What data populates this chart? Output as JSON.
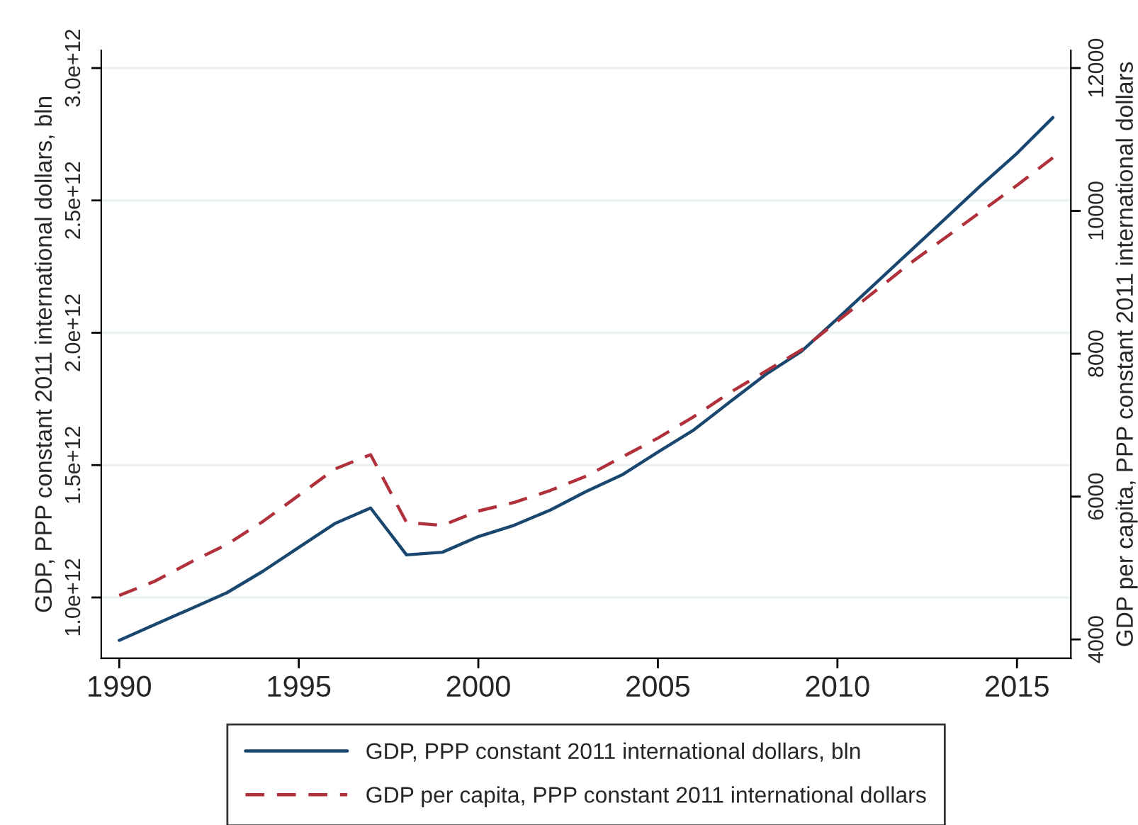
{
  "chart_data": {
    "type": "line",
    "ylabel": "GDP, PPP constant 2011 international dollars, bln",
    "y2label": "GDP per capita, PPP constant 2011 international dollars",
    "x": [
      1990,
      1991,
      1992,
      1993,
      1994,
      1995,
      1996,
      1997,
      1998,
      1999,
      2000,
      2001,
      2002,
      2003,
      2004,
      2005,
      2006,
      2007,
      2008,
      2009,
      2010,
      2011,
      2012,
      2013,
      2014,
      2015,
      2016
    ],
    "series": [
      {
        "name": "GDP, PPP constant 2011 international dollars, bln",
        "color": "#1a476f",
        "line_style": "solid",
        "values": [
          838000000000.0,
          898000000000.0,
          958000000000.0,
          1018000000000.0,
          1099000000000.0,
          1189000000000.0,
          1279000000000.0,
          1338000000000.0,
          1161000000000.0,
          1171000000000.0,
          1230000000000.0,
          1273000000000.0,
          1330000000000.0,
          1400000000000.0,
          1463000000000.0,
          1549000000000.0,
          1633000000000.0,
          1738000000000.0,
          1842000000000.0,
          1930000000000.0,
          2053000000000.0,
          2179000000000.0,
          2305000000000.0,
          2431000000000.0,
          2557000000000.0,
          2678000000000.0,
          2813000000000.0
        ]
      },
      {
        "name": "GDP per capita, PPP constant 2011 international dollars",
        "color": "#b0313b",
        "line_style": "dashed",
        "axis": "y2",
        "values": [
          4616,
          4817,
          5084,
          5330,
          5651,
          6017,
          6385,
          6587,
          5638,
          5597,
          5798,
          5919,
          6085,
          6285,
          6552,
          6819,
          7119,
          7454,
          7754,
          8054,
          8455,
          8856,
          9257,
          9624,
          9990,
          10358,
          10745
        ]
      }
    ],
    "xlim": [
      1989.5,
      2016.5
    ],
    "xticks": [
      1990,
      1995,
      2000,
      2005,
      2010,
      2015
    ],
    "ylim": [
      770000000000.0,
      3067000000000.0
    ],
    "yticks": [
      {
        "value": 1000000000000.0,
        "label": "1.0e+12"
      },
      {
        "value": 1500000000000.0,
        "label": "1.5e+12"
      },
      {
        "value": 2000000000000.0,
        "label": "2.0e+12"
      },
      {
        "value": 2500000000000.0,
        "label": "2.5e+12"
      },
      {
        "value": 3000000000000.0,
        "label": "3.0e+12"
      }
    ],
    "y2lim": [
      3735,
      12248
    ],
    "y2ticks": [
      4000,
      6000,
      8000,
      10000,
      12000
    ],
    "grid": "y",
    "legend": "bottom",
    "marker": "none"
  }
}
